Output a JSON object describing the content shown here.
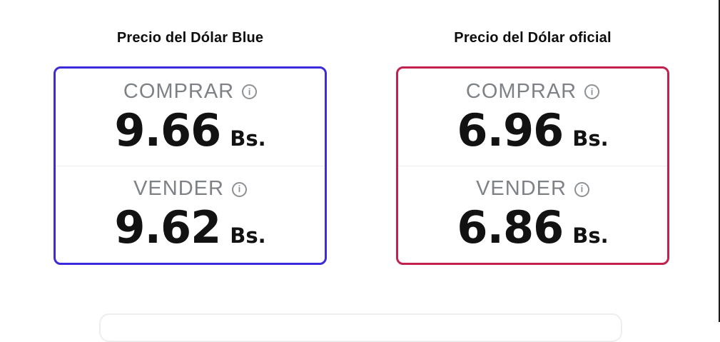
{
  "cards": [
    {
      "title": "Precio del Dólar Blue",
      "accent_color": "#3b2bdb",
      "buy": {
        "label": "COMPRAR",
        "value": "9.66",
        "currency": "Bs."
      },
      "sell": {
        "label": "VENDER",
        "value": "9.62",
        "currency": "Bs."
      }
    },
    {
      "title": "Precio del Dólar oficial",
      "accent_color": "#c2204f",
      "buy": {
        "label": "COMPRAR",
        "value": "6.96",
        "currency": "Bs."
      },
      "sell": {
        "label": "VENDER",
        "value": "6.86",
        "currency": "Bs."
      }
    }
  ],
  "icons": {
    "info": "i"
  },
  "colors": {
    "label_gray": "#7e8287",
    "value_black": "#121212",
    "divider": "#ededed",
    "bottom_card_border": "#eeeeee",
    "window_edge": "#1b1b1b",
    "background": "#ffffff"
  }
}
